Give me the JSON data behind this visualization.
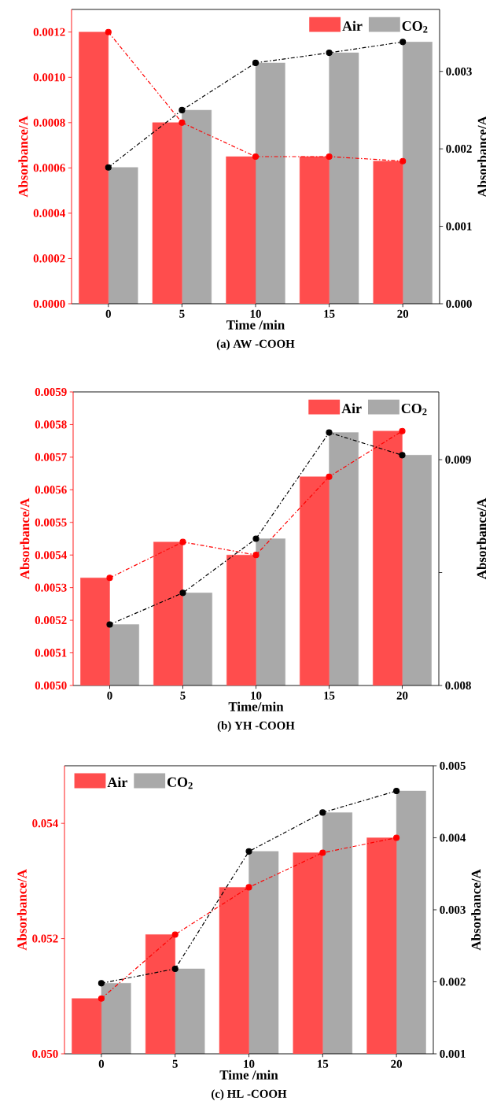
{
  "chart_data": [
    {
      "type": "bar",
      "title": "(a) AW  -COOH",
      "xlabel": "Time /min",
      "ylabel": "Absorbance/A",
      "y2label": "Absorbance/A",
      "categories": [
        "0",
        "5",
        "10",
        "15",
        "20"
      ],
      "series": [
        {
          "axis": "y",
          "name": "Air",
          "color": "#ff4d4d",
          "values": [
            0.0012,
            0.0008,
            0.00065,
            0.00065,
            0.00063
          ]
        },
        {
          "axis": "y2",
          "name": "CO$_{2}$",
          "color": "#a9a9a9",
          "values": [
            0.00176,
            0.0025,
            0.00311,
            0.00324,
            0.00338
          ]
        },
        {
          "type": "line",
          "axis": "y",
          "color": "#ff0000",
          "line_style": "dashdot",
          "marker": "circle",
          "values": [
            0.0012,
            0.0008,
            0.00065,
            0.00065,
            0.00063
          ]
        },
        {
          "type": "line",
          "axis": "y2",
          "color": "#000000",
          "line_style": "dashdot",
          "marker": "circle",
          "values": [
            0.00176,
            0.0025,
            0.00311,
            0.00324,
            0.00338
          ]
        }
      ],
      "ylim": [
        0,
        0.0013
      ],
      "yticks": [
        {
          "value": 0,
          "label": "0.0000"
        },
        {
          "value": 0.0002,
          "label": "0.0002"
        },
        {
          "value": 0.0004,
          "label": "0.0004"
        },
        {
          "value": 0.0006,
          "label": "0.0006"
        },
        {
          "value": 0.0008,
          "label": "0.0008"
        },
        {
          "value": 0.001,
          "label": "0.0010"
        },
        {
          "value": 0.0012,
          "label": "0.0012"
        }
      ],
      "y2lim": [
        0,
        0.0038
      ],
      "y2ticks": [
        {
          "value": 0,
          "label": "0.000"
        },
        {
          "value": 0.001,
          "label": "0.001"
        },
        {
          "value": 0.002,
          "label": "0.002"
        },
        {
          "value": 0.003,
          "label": "0.003"
        }
      ],
      "legend": "top right",
      "grid": false
    },
    {
      "type": "bar",
      "title": "(b) YH -COOH",
      "xlabel": "Time/min",
      "ylabel": "Absorbance/A",
      "y2label": "Absorbance/A",
      "categories": [
        "0",
        "5",
        "10",
        "15",
        "20"
      ],
      "series": [
        {
          "axis": "y",
          "name": "Air",
          "color": "#ff4d4d",
          "values": [
            0.00533,
            0.00544,
            0.0054,
            0.00564,
            0.00578
          ]
        },
        {
          "axis": "y2",
          "name": "CO$_{2}$",
          "color": "#a9a9a9",
          "values": [
            0.00827,
            0.00841,
            0.00865,
            0.00912,
            0.00902
          ]
        },
        {
          "type": "line",
          "axis": "y",
          "color": "#ff0000",
          "line_style": "dashdot",
          "marker": "circle",
          "values": [
            0.00533,
            0.00544,
            0.0054,
            0.00564,
            0.00578
          ]
        },
        {
          "type": "line",
          "axis": "y2",
          "color": "#000000",
          "line_style": "dashdot",
          "marker": "circle",
          "values": [
            0.00827,
            0.00841,
            0.00865,
            0.00912,
            0.00902
          ]
        }
      ],
      "ylim": [
        0.005,
        0.0059
      ],
      "yticks": [
        {
          "value": 0.005,
          "label": "0.0050"
        },
        {
          "value": 0.0051,
          "label": "0.0051"
        },
        {
          "value": 0.0052,
          "label": "0.0052"
        },
        {
          "value": 0.0053,
          "label": "0.0053"
        },
        {
          "value": 0.0054,
          "label": "0.0054"
        },
        {
          "value": 0.0055,
          "label": "0.0055"
        },
        {
          "value": 0.0056,
          "label": "0.0056"
        },
        {
          "value": 0.0057,
          "label": "0.0057"
        },
        {
          "value": 0.0058,
          "label": "0.0058"
        },
        {
          "value": 0.0059,
          "label": "0.0059"
        }
      ],
      "y2lim": [
        0.008,
        0.0093
      ],
      "y2ticks": [
        {
          "value": 0.008,
          "label": "0.008"
        },
        {
          "value": 0.0085,
          "label": null
        },
        {
          "value": 0.009,
          "label": "0.009"
        }
      ],
      "legend": "top right",
      "grid": false
    },
    {
      "type": "bar",
      "title": "(c) HL -COOH",
      "xlabel": "Time /min",
      "ylabel": "Absorbance/A",
      "y2label": "Absorbance/A",
      "categories": [
        "0",
        "5",
        "10",
        "15",
        "20"
      ],
      "series": [
        {
          "axis": "y",
          "name": "Air",
          "color": "#ff4d4d",
          "values": [
            0.05096,
            0.05207,
            0.05289,
            0.05349,
            0.05375
          ]
        },
        {
          "axis": "y2",
          "name": "CO$_{2}$",
          "color": "#a9a9a9",
          "values": [
            0.00198,
            0.00218,
            0.00381,
            0.00435,
            0.00465
          ]
        },
        {
          "type": "line",
          "axis": "y",
          "color": "#ff0000",
          "line_style": "dashdot",
          "marker": "circle",
          "values": [
            0.05096,
            0.05207,
            0.05289,
            0.05349,
            0.05375
          ]
        },
        {
          "type": "line",
          "axis": "y2",
          "color": "#000000",
          "line_style": "dashdot",
          "marker": "circle",
          "values": [
            0.00198,
            0.00218,
            0.00381,
            0.00435,
            0.00465
          ]
        }
      ],
      "ylim": [
        0.05,
        0.055
      ],
      "yticks": [
        {
          "value": 0.05,
          "label": "0.050"
        },
        {
          "value": 0.052,
          "label": "0.052"
        },
        {
          "value": 0.054,
          "label": "0.054"
        }
      ],
      "y2lim": [
        0.001,
        0.005
      ],
      "y2ticks": [
        {
          "value": 0.001,
          "label": "0.001"
        },
        {
          "value": 0.002,
          "label": "0.002"
        },
        {
          "value": 0.003,
          "label": "0.003"
        },
        {
          "value": 0.004,
          "label": "0.004"
        },
        {
          "value": 0.005,
          "label": "0.005"
        }
      ],
      "legend": "top left",
      "grid": false
    }
  ]
}
